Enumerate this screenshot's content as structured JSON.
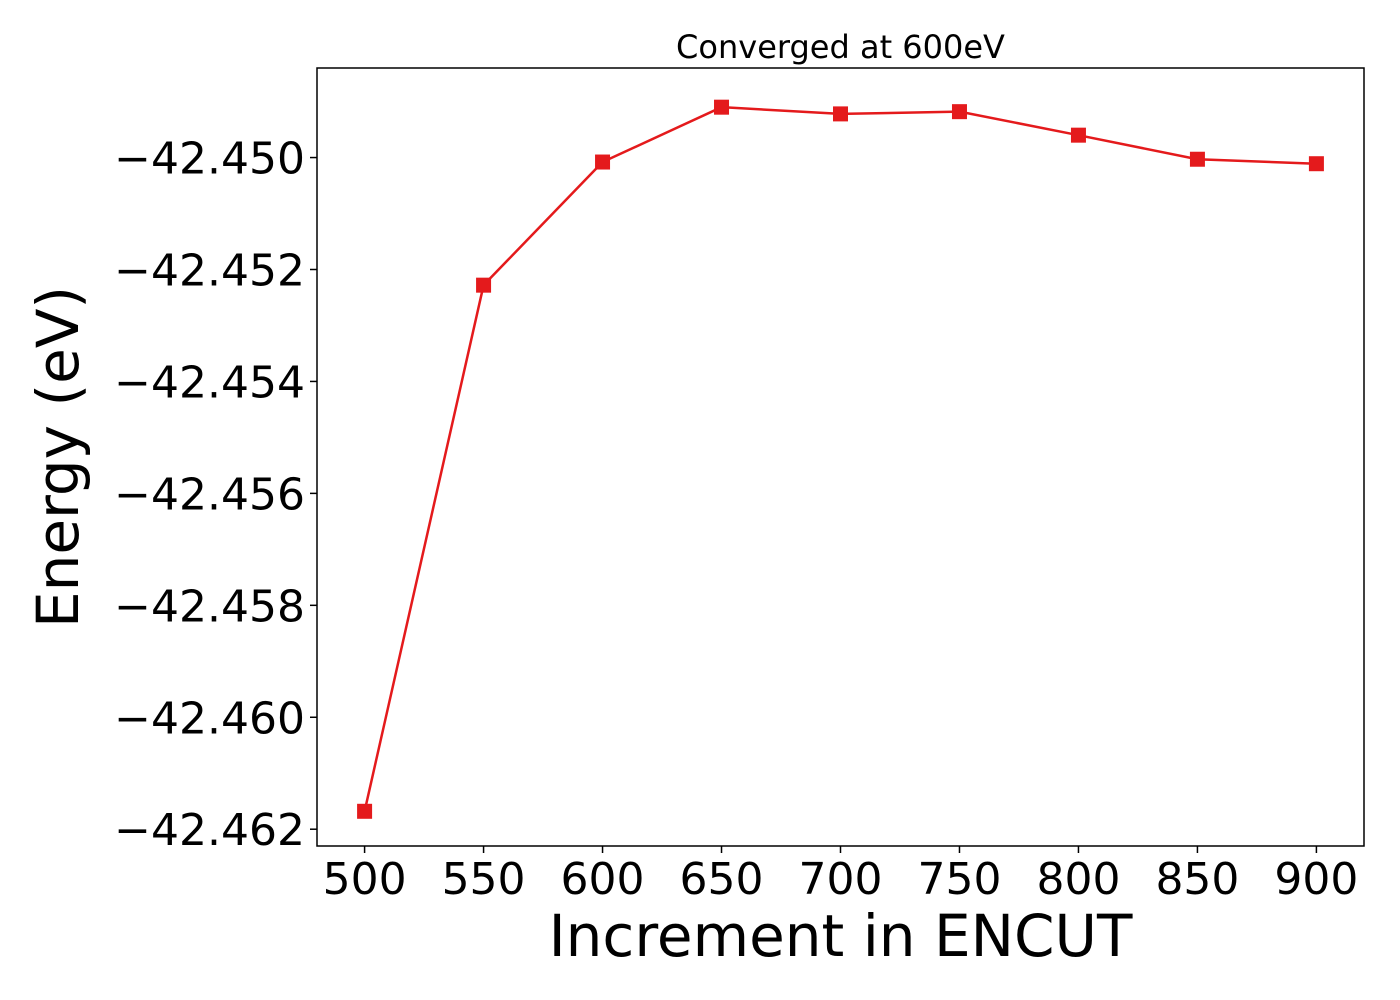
{
  "chart_data": {
    "type": "line",
    "title": "Converged at 600eV",
    "xlabel": "Increment in ENCUT",
    "ylabel": "Energy (eV)",
    "x": [
      500,
      550,
      600,
      650,
      700,
      750,
      800,
      850,
      900
    ],
    "xticks": [
      500,
      550,
      600,
      650,
      700,
      750,
      800,
      850,
      900
    ],
    "xtick_labels": [
      "500",
      "550",
      "600",
      "650",
      "700",
      "750",
      "800",
      "850",
      "900"
    ],
    "xlim": [
      480,
      920
    ],
    "yticks": [
      -42.462,
      -42.46,
      -42.458,
      -42.456,
      -42.454,
      -42.452,
      -42.45
    ],
    "ytick_labels": [
      "−42.462",
      "−42.460",
      "−42.458",
      "−42.456",
      "−42.454",
      "−42.452",
      "−42.450"
    ],
    "ylim": [
      -42.4623,
      -42.4484
    ],
    "grid": false,
    "series": [
      {
        "values": [
          -42.46168,
          -42.45228,
          -42.45008,
          -42.4491,
          -42.44922,
          -42.44918,
          -42.4496,
          -42.45003,
          -42.45011
        ],
        "color": "#e41a1c",
        "marker": "square"
      }
    ]
  }
}
